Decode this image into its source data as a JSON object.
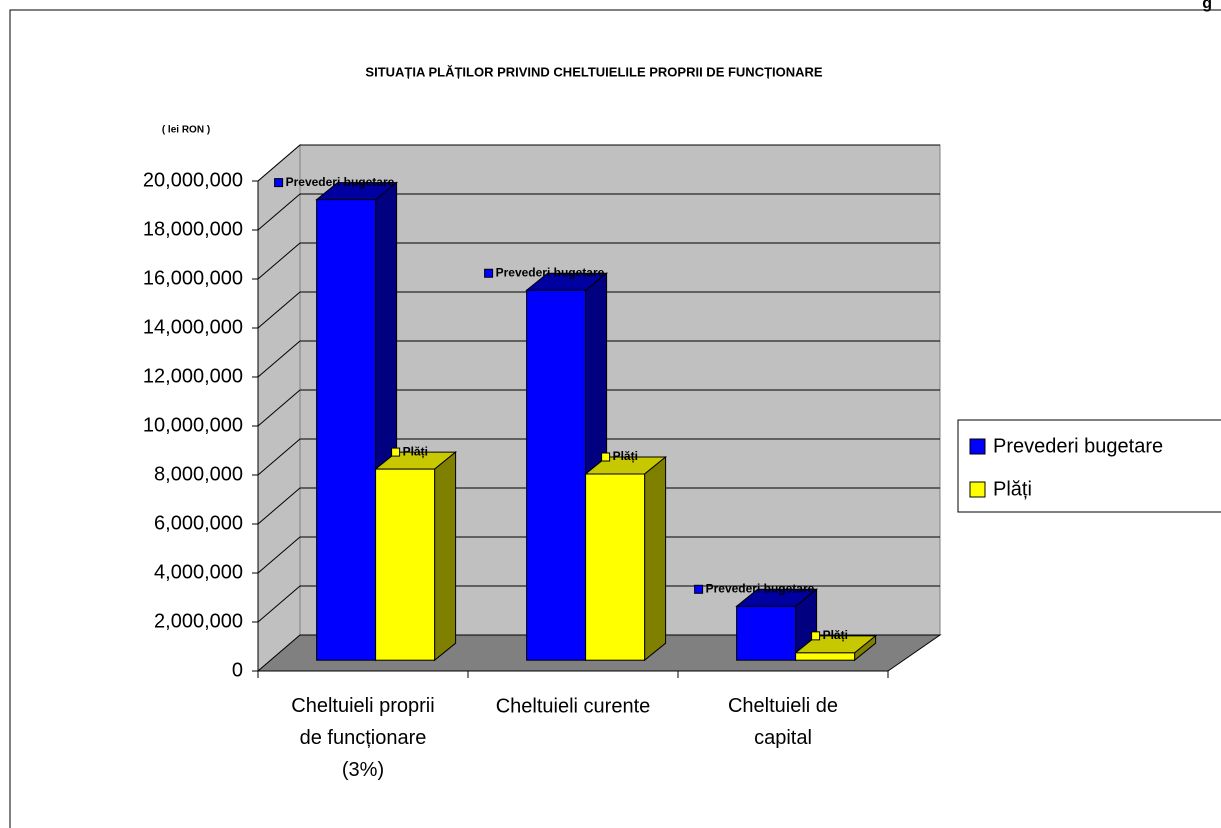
{
  "corner_text": "g",
  "chart_data": {
    "type": "bar3d",
    "title": "SITUAȚIA PLĂȚILOR PRIVIND CHELTUIELILE PROPRII DE FUNCȚIONARE",
    "ylabel": "( lei RON )",
    "categories": [
      "Cheltuieli proprii\nde funcționare\n(3%)",
      "Cheltuieli curente",
      "Cheltuieli de\ncapital"
    ],
    "series": [
      {
        "name": "Prevederi bugetare",
        "color": "#0000ff",
        "values": [
          18800000,
          15100000,
          2200000
        ]
      },
      {
        "name": "Plăți",
        "color": "#ffff00",
        "values": [
          7800000,
          7600000,
          300000
        ]
      }
    ],
    "ylim": [
      0,
      20000000
    ],
    "yticks": [
      0,
      {
        "value": 2000000,
        "label": "2,000,000"
      },
      {
        "value": 4000000,
        "label": "4,000,000"
      },
      {
        "value": 6000000,
        "label": "6,000,000"
      },
      {
        "value": 8000000,
        "label": "8,000,000"
      },
      {
        "value": 10000000,
        "label": "10,000,000"
      },
      {
        "value": 12000000,
        "label": "12,000,000"
      },
      {
        "value": 14000000,
        "label": "14,000,000"
      },
      {
        "value": 16000000,
        "label": "16,000,000"
      },
      {
        "value": 18000000,
        "label": "18,000,000"
      },
      {
        "value": 20000000,
        "label": "20,000,000"
      }
    ],
    "grid": true,
    "legend": "right"
  }
}
